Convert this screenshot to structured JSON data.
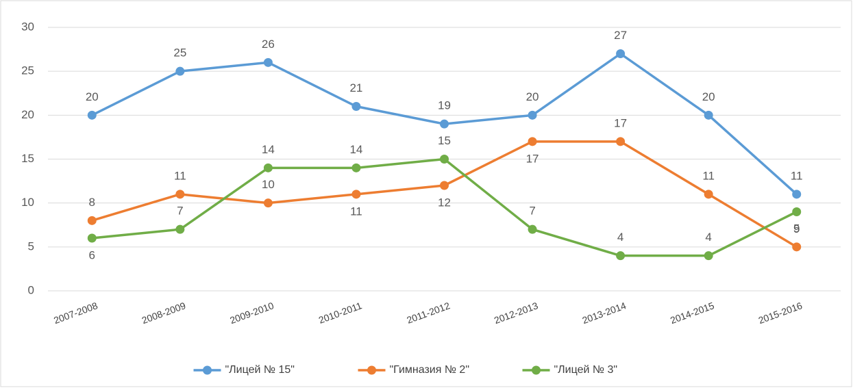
{
  "chart_data": {
    "type": "line",
    "categories": [
      "2007-2008",
      "2008-2009",
      "2009-2010",
      "2010-2011",
      "2011-2012",
      "2012-2013",
      "2013-2014",
      "2014-2015",
      "2015-2016"
    ],
    "series": [
      {
        "name": "\"Лицей № 15\"",
        "color": "#5b9bd5",
        "values": [
          20,
          25,
          26,
          21,
          19,
          20,
          27,
          20,
          11
        ]
      },
      {
        "name": "\"Гимназия № 2\"",
        "color": "#ed7d31",
        "values": [
          8,
          11,
          10,
          11,
          12,
          17,
          17,
          11,
          5
        ]
      },
      {
        "name": "\"Лицей № 3\"",
        "color": "#70ad47",
        "values": [
          6,
          7,
          14,
          14,
          15,
          7,
          4,
          4,
          9
        ]
      }
    ],
    "ylim": [
      0,
      30
    ],
    "yticks": [
      0,
      5,
      10,
      15,
      20,
      25,
      30
    ],
    "grid": true,
    "legend": "bottom"
  }
}
